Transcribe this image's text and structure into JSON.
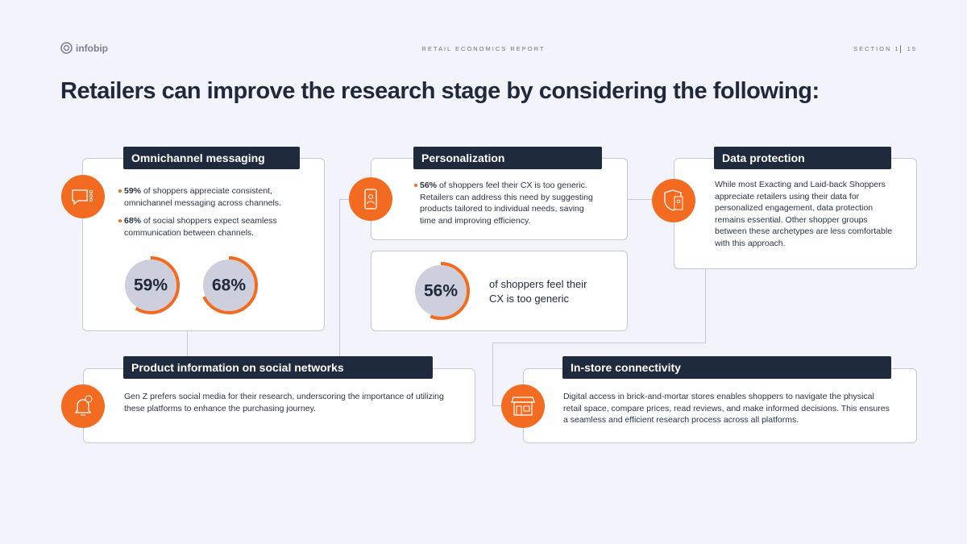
{
  "header": {
    "logo": "infobip",
    "report": "RETAIL ECONOMICS REPORT",
    "section": "SECTION 1",
    "page": "15"
  },
  "title": "Retailers can improve the research stage by considering the following:",
  "omnichannel": {
    "heading": "Omnichannel messaging",
    "bullets": [
      {
        "bold": "59%",
        "text": "of shoppers appreciate consistent, omnichannel messaging across channels."
      },
      {
        "bold": "68%",
        "text": "of social shoppers expect seamless communication between channels."
      }
    ],
    "stats": [
      {
        "value": 59,
        "label": "59%"
      },
      {
        "value": 68,
        "label": "68%"
      }
    ]
  },
  "personalization": {
    "heading": "Personalization",
    "bullets": [
      {
        "bold": "56%",
        "text": "of shoppers feel their CX is too generic. Retailers can address this need by suggesting products tailored to individual needs, saving time and improving efficiency."
      }
    ],
    "stat": {
      "value": 56,
      "label": "56%"
    },
    "stat_text": "of shoppers feel their CX is too generic"
  },
  "data_protection": {
    "heading": "Data protection",
    "text": "While most Exacting and Laid-back Shoppers appreciate retailers using their data for personalized engagement, data protection remains essential. Other shopper groups between these archetypes are less comfortable with this approach."
  },
  "social": {
    "heading": "Product information on social networks",
    "text": "Gen Z prefers social media for their research, underscoring the importance of utilizing these platforms to enhance the purchasing journey."
  },
  "in_store": {
    "heading": "In-store connectivity",
    "text": "Digital access in brick-and-mortar stores enables shoppers to navigate the physical retail space, compare prices, read reviews, and make informed decisions. This ensures a seamless and efficient research process across all platforms."
  }
}
